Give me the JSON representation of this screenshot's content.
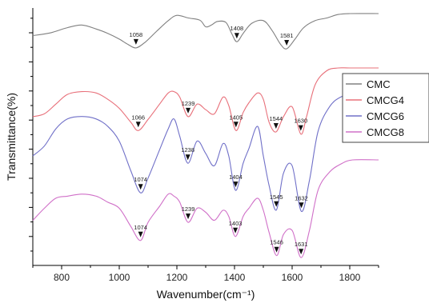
{
  "chart_data": {
    "type": "line",
    "xlabel": "Wavenumber(cm⁻¹)",
    "ylabel": "Transmittance(%)",
    "xlim": [
      700,
      1900
    ],
    "xticks": [
      "800",
      "1000",
      "1200",
      "1400",
      "1600",
      "1800"
    ],
    "grid": false,
    "legend_position": "right",
    "series": [
      {
        "name": "CMC",
        "color": "#808080",
        "x": [
          700,
          760,
          820,
          870,
          920,
          960,
          1000,
          1030,
          1058,
          1090,
          1130,
          1170,
          1200,
          1240,
          1280,
          1300,
          1320,
          1340,
          1370,
          1390,
          1408,
          1430,
          1460,
          1500,
          1530,
          1560,
          1581,
          1610,
          1640,
          1680,
          1720,
          1760,
          1800,
          1900
        ],
        "y": [
          0.5,
          0.56,
          0.68,
          0.74,
          0.65,
          0.55,
          0.42,
          0.3,
          0.22,
          0.35,
          0.6,
          0.84,
          0.96,
          0.9,
          0.85,
          0.7,
          0.74,
          0.82,
          0.8,
          0.55,
          0.36,
          0.55,
          0.78,
          0.84,
          0.62,
          0.3,
          0.2,
          0.42,
          0.68,
          0.84,
          0.9,
          0.98,
          1.0,
          1.0
        ]
      },
      {
        "name": "CMCG4",
        "color": "#e8707a",
        "x": [
          700,
          740,
          780,
          820,
          870,
          920,
          960,
          1000,
          1040,
          1066,
          1100,
          1140,
          1170,
          1190,
          1210,
          1239,
          1270,
          1300,
          1330,
          1360,
          1380,
          1405,
          1430,
          1450,
          1480,
          1500,
          1520,
          1544,
          1570,
          1600,
          1630,
          1650,
          1680,
          1720,
          1760,
          1800,
          1900
        ],
        "y": [
          0.3,
          0.34,
          0.48,
          0.62,
          0.66,
          0.64,
          0.55,
          0.42,
          0.22,
          0.1,
          0.26,
          0.48,
          0.64,
          0.66,
          0.58,
          0.3,
          0.48,
          0.4,
          0.34,
          0.58,
          0.46,
          0.1,
          0.36,
          0.5,
          0.64,
          0.55,
          0.22,
          0.08,
          0.3,
          0.44,
          0.05,
          0.3,
          0.76,
          0.96,
          1.0,
          1.0,
          1.0
        ]
      },
      {
        "name": "CMCG6",
        "color": "#7070c8",
        "x": [
          700,
          740,
          780,
          820,
          870,
          920,
          960,
          1000,
          1040,
          1074,
          1100,
          1140,
          1170,
          1190,
          1210,
          1238,
          1270,
          1300,
          1330,
          1360,
          1380,
          1404,
          1430,
          1450,
          1480,
          1500,
          1520,
          1545,
          1570,
          1600,
          1632,
          1660,
          1690,
          1730,
          1770,
          1810,
          1900
        ],
        "y": [
          0.5,
          0.58,
          0.72,
          0.8,
          0.82,
          0.8,
          0.74,
          0.62,
          0.38,
          0.2,
          0.32,
          0.55,
          0.72,
          0.8,
          0.66,
          0.44,
          0.62,
          0.52,
          0.42,
          0.6,
          0.5,
          0.22,
          0.44,
          0.56,
          0.74,
          0.5,
          0.26,
          0.06,
          0.36,
          0.42,
          0.05,
          0.3,
          0.7,
          0.9,
          0.98,
          1.0,
          1.0
        ]
      },
      {
        "name": "CMCG8",
        "color": "#d070c8",
        "x": [
          700,
          740,
          780,
          820,
          870,
          920,
          960,
          1000,
          1040,
          1074,
          1100,
          1140,
          1170,
          1190,
          1210,
          1239,
          1270,
          1300,
          1330,
          1360,
          1380,
          1403,
          1430,
          1450,
          1480,
          1500,
          1520,
          1546,
          1570,
          1600,
          1631,
          1660,
          1690,
          1730,
          1770,
          1810,
          1900
        ],
        "y": [
          0.4,
          0.52,
          0.62,
          0.64,
          0.66,
          0.64,
          0.58,
          0.52,
          0.34,
          0.2,
          0.38,
          0.54,
          0.66,
          0.64,
          0.58,
          0.38,
          0.52,
          0.48,
          0.4,
          0.5,
          0.44,
          0.24,
          0.44,
          0.52,
          0.62,
          0.5,
          0.28,
          0.05,
          0.26,
          0.3,
          0.03,
          0.3,
          0.7,
          0.88,
          0.96,
          1.0,
          1.0
        ]
      }
    ],
    "annotations": [
      {
        "series": 0,
        "x": 1058,
        "label": "1058"
      },
      {
        "series": 0,
        "x": 1408,
        "label": "1408"
      },
      {
        "series": 0,
        "x": 1581,
        "label": "1581"
      },
      {
        "series": 1,
        "x": 1066,
        "label": "1066"
      },
      {
        "series": 1,
        "x": 1239,
        "label": "1239"
      },
      {
        "series": 1,
        "x": 1405,
        "label": "1405"
      },
      {
        "series": 1,
        "x": 1544,
        "label": "1544"
      },
      {
        "series": 1,
        "x": 1630,
        "label": "1630"
      },
      {
        "series": 2,
        "x": 1074,
        "label": "1074"
      },
      {
        "series": 2,
        "x": 1238,
        "label": "1238"
      },
      {
        "series": 2,
        "x": 1404,
        "label": "1404"
      },
      {
        "series": 2,
        "x": 1545,
        "label": "1545"
      },
      {
        "series": 2,
        "x": 1632,
        "label": "1632"
      },
      {
        "series": 3,
        "x": 1074,
        "label": "1074"
      },
      {
        "series": 3,
        "x": 1239,
        "label": "1239"
      },
      {
        "series": 3,
        "x": 1403,
        "label": "1403"
      },
      {
        "series": 3,
        "x": 1546,
        "label": "1546"
      },
      {
        "series": 3,
        "x": 1631,
        "label": "1631"
      }
    ]
  }
}
